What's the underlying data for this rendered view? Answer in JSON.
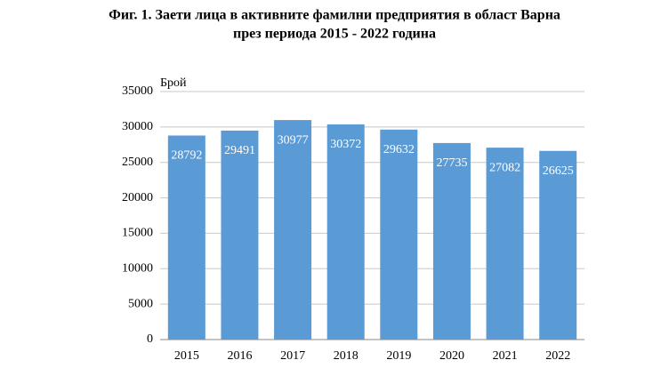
{
  "chart_data": {
    "type": "bar",
    "title": [
      "Фиг. 1. Заети лица в активните фамилни предприятия в област Варна",
      "през периода 2015 - 2022 година"
    ],
    "y_label": "Брой",
    "categories": [
      "2015",
      "2016",
      "2017",
      "2018",
      "2019",
      "2020",
      "2021",
      "2022"
    ],
    "values": [
      28792,
      29491,
      30977,
      30372,
      29632,
      27735,
      27082,
      26625
    ],
    "color": "#5b9bd5",
    "ylim": [
      0,
      35000
    ],
    "yticks": [
      0,
      5000,
      10000,
      15000,
      20000,
      25000,
      30000,
      35000
    ],
    "grid": true
  }
}
